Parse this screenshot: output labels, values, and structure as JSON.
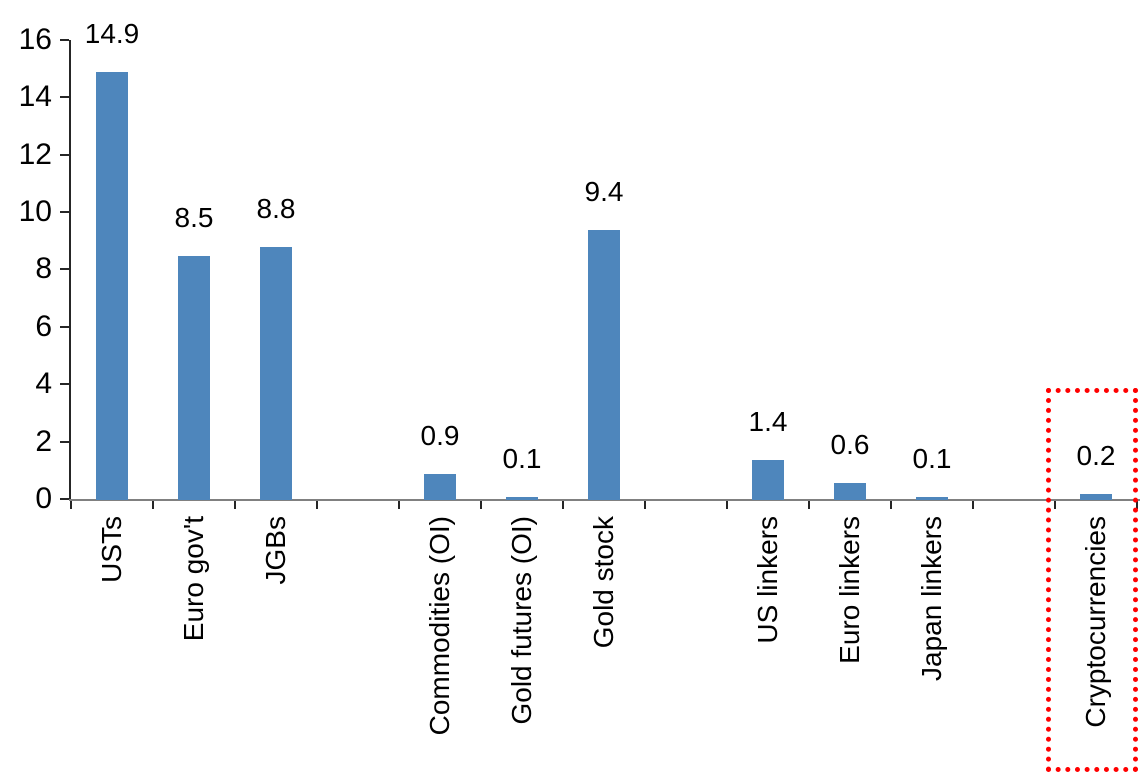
{
  "chart_data": {
    "type": "bar",
    "title": "",
    "xlabel": "",
    "ylabel": "",
    "categories": [
      "USTs",
      "Euro gov't",
      "JGBs",
      "",
      "Commodities (OI)",
      "Gold futures (OI)",
      "Gold stock",
      "",
      "US linkers",
      "Euro linkers",
      "Japan linkers",
      "",
      "Cryptocurrencies"
    ],
    "values": [
      14.9,
      8.5,
      8.8,
      null,
      0.9,
      0.1,
      9.4,
      null,
      1.4,
      0.6,
      0.1,
      null,
      0.2
    ],
    "value_labels": [
      "14.9",
      "8.5",
      "8.8",
      "",
      "0.9",
      "0.1",
      "9.4",
      "",
      "1.4",
      "0.6",
      "0.1",
      "",
      "0.2"
    ],
    "y_ticks": [
      0,
      2,
      4,
      6,
      8,
      10,
      12,
      14,
      16
    ],
    "ylim": [
      0,
      16
    ],
    "grid": false,
    "legend_position": "none",
    "x_label_rotation_degrees": -90,
    "colors": {
      "bar": "#4E86BC",
      "x_axis_line": "#808080",
      "y_axis_line": "#262626",
      "tick": "#262626",
      "text": "#000000",
      "highlight_box": "#FF0000",
      "background": "#FFFFFF"
    },
    "highlight": {
      "category": "Cryptocurrencies",
      "style": "dotted-rectangle"
    }
  }
}
